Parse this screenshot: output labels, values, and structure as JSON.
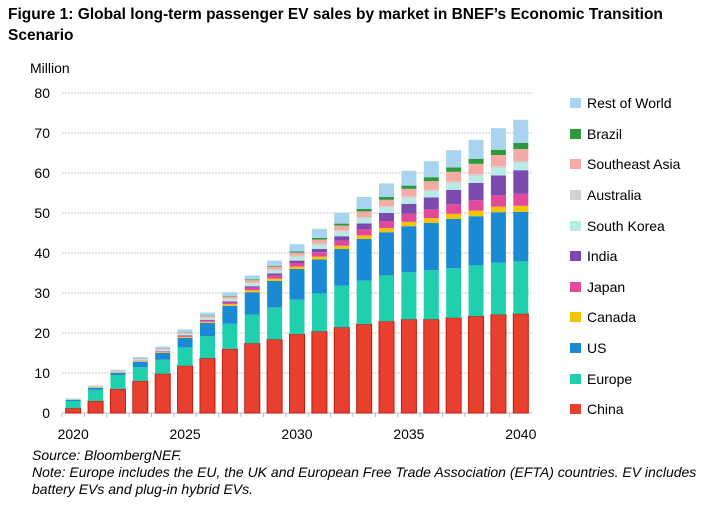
{
  "title": "Figure 1: Global long-term passenger EV sales by market in BNEF’s Economic Transition Scenario",
  "source": "Source: BloombergNEF.",
  "note": "Note: Europe includes the EU, the UK and European Free Trade Association (EFTA) countries. EV includes battery EVs and plug-in hybrid EVs.",
  "chart_data": {
    "type": "bar",
    "stacked": true,
    "ylabel": "Million",
    "ylim": [
      0,
      80
    ],
    "yticks": [
      0,
      10,
      20,
      30,
      40,
      50,
      60,
      70,
      80
    ],
    "xticks": [
      2020,
      2025,
      2030,
      2035,
      2040
    ],
    "grid": true,
    "legend_position": "right",
    "categories": [
      2020,
      2021,
      2022,
      2023,
      2024,
      2025,
      2026,
      2027,
      2028,
      2029,
      2030,
      2031,
      2032,
      2033,
      2034,
      2035,
      2036,
      2037,
      2038,
      2039,
      2040
    ],
    "series": [
      {
        "name": "China",
        "color": "#e8402e",
        "values": [
          1.2,
          3,
          6,
          8,
          9.8,
          11.8,
          13.7,
          16,
          17.4,
          18.4,
          19.7,
          20.4,
          21.4,
          22.2,
          22.9,
          23.4,
          23.4,
          23.8,
          24.2,
          24.6,
          24.8
        ]
      },
      {
        "name": "Europe",
        "color": "#1fcfae",
        "values": [
          1.8,
          2.8,
          3.5,
          3.5,
          3.5,
          4.6,
          5.5,
          6.3,
          7.2,
          8,
          8.6,
          9.5,
          10.4,
          10.9,
          11.5,
          11.8,
          12.3,
          12.4,
          12.7,
          13,
          13.1
        ]
      },
      {
        "name": "US",
        "color": "#1a8ad4",
        "values": [
          0.3,
          0.5,
          0.5,
          1.3,
          1.7,
          2.4,
          3.3,
          4.5,
          5.6,
          6.6,
          7.7,
          8.5,
          9.2,
          10.4,
          10.8,
          11.5,
          11.8,
          12.3,
          12.3,
          12.6,
          12.4
        ]
      },
      {
        "name": "Canada",
        "color": "#f5c400",
        "values": [
          0.05,
          0.1,
          0.1,
          0.15,
          0.2,
          0.25,
          0.3,
          0.4,
          0.5,
          0.6,
          0.6,
          0.7,
          0.8,
          0.9,
          1.0,
          1.1,
          1.2,
          1.3,
          1.4,
          1.4,
          1.5
        ]
      },
      {
        "name": "Japan",
        "color": "#e4489a",
        "values": [
          0.03,
          0.05,
          0.05,
          0.1,
          0.15,
          0.2,
          0.3,
          0.4,
          0.6,
          0.8,
          0.9,
          1.1,
          1.3,
          1.5,
          1.8,
          2.0,
          2.2,
          2.4,
          2.6,
          2.8,
          3.0
        ]
      },
      {
        "name": "India",
        "color": "#7a4aae",
        "values": [
          0.01,
          0.02,
          0.03,
          0.05,
          0.1,
          0.15,
          0.2,
          0.3,
          0.4,
          0.5,
          0.6,
          0.8,
          1.1,
          1.5,
          2.0,
          2.5,
          3.0,
          3.6,
          4.3,
          5.0,
          5.9
        ]
      },
      {
        "name": "South Korea",
        "color": "#b6ebe6",
        "values": [
          0.1,
          0.1,
          0.15,
          0.2,
          0.25,
          0.3,
          0.4,
          0.5,
          0.6,
          0.7,
          0.9,
          1.0,
          1.1,
          1.2,
          1.3,
          1.4,
          1.5,
          1.6,
          1.7,
          1.8,
          1.8
        ]
      },
      {
        "name": "Australia",
        "color": "#d2d2d2",
        "values": [
          0.01,
          0.02,
          0.05,
          0.1,
          0.15,
          0.2,
          0.2,
          0.25,
          0.3,
          0.3,
          0.3,
          0.35,
          0.35,
          0.4,
          0.4,
          0.45,
          0.45,
          0.5,
          0.5,
          0.5,
          0.5
        ]
      },
      {
        "name": "Southeast Asia",
        "color": "#f4aba6",
        "values": [
          0.02,
          0.05,
          0.1,
          0.15,
          0.2,
          0.3,
          0.4,
          0.5,
          0.6,
          0.7,
          0.8,
          1.0,
          1.2,
          1.4,
          1.6,
          1.9,
          2.1,
          2.4,
          2.6,
          2.8,
          3.0
        ]
      },
      {
        "name": "Brazil",
        "color": "#2a9a3a",
        "values": [
          0.01,
          0.02,
          0.03,
          0.05,
          0.05,
          0.1,
          0.1,
          0.15,
          0.2,
          0.2,
          0.3,
          0.4,
          0.5,
          0.6,
          0.7,
          0.8,
          1.0,
          1.1,
          1.2,
          1.3,
          1.5
        ]
      },
      {
        "name": "Rest of World",
        "color": "#a8d4ef",
        "values": [
          0.1,
          0.2,
          0.3,
          0.4,
          0.5,
          0.6,
          0.7,
          0.9,
          1.0,
          1.3,
          1.8,
          2.3,
          2.7,
          3.0,
          3.4,
          3.7,
          4.0,
          4.3,
          4.8,
          5.4,
          5.8
        ]
      }
    ]
  }
}
